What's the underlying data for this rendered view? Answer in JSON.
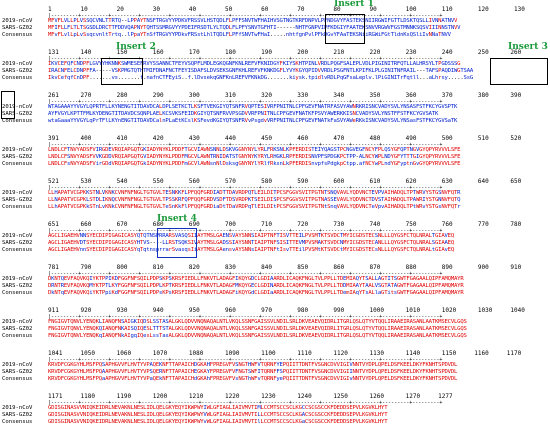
{
  "labels": {
    "a": "2019-nCoV",
    "b": "SARS-GZ02",
    "c": "Consensus"
  },
  "inserts": [
    "Insert 1",
    "Insert 2",
    "Insert 3",
    "Insert 4"
  ],
  "blocks": [
    {
      "scale": "1        10        20        30        40        50        60        70        80        90        100       110       120       130",
      "a": "MFVFLVLLPLVSSQCVNLTTRTQ--LPPAYTNSFTRGVYYPDKVFRSSVLHSTQDLFLPFFSNVTWFHAIHVSGTNGTKRFDNPVLPFNDGVYFASTEKSNIIRGWIFGTTLDSKTQSLLIVNNATNVV",
      "b": "MFIFLLFLTLTSGSDLDRCTTFDDVQAPNYTQHTSSMRGVYYPDEIFRSDTLYLTQDLFLPFYSNVTGFHTI------NHTFGNPVIPFKDGIYFAATEKSNVVRGWVFGSTMNNKSQSVIIINNSTNVV",
      "c": "MFvFLvlLpLvSsqcvnltTrtq..lPpaYTnSfTRGVYYPDkvFRSstLhlTQDLFLPFfSNVTwFHaI.....nhtfgnPvlPFkDGvYFAaTEKSNiiRGWiFGtTldnKsQSliIvNNaTNVV"
    },
    {
      "scale": "131      140       150       160       170       180       190       200       210       220       230       240       250      260",
      "a": "IKVCEFQFCNDPFLGVYYHKNNKSWMESEFRVYSSANNCTFEYVSQPFLMDLEGKQGNFKNLREFVFKNIDGYFKIYSKHTPINLVRDLPQGFSALEPLVDLPIGINITRFQTLLALHRSYLTPGDSSSG",
      "b": "IRACNFELCDNPFFA-----VSKPMGTQTHTMIFDNAFNCTFEYISDAFSLDVSEKSGNFKHLREFVFKNKDGFLYVYKGYQPIDVVRDLPSGFNTLKPIFKLPLGINITNFRAIL---TAFSPAQDIWGTSAA",
      "c": "IkvCefqfCnDPF.......vs.......f.nafnCTFEyiS..f.lDvsekqGNFKnLREFVFKNkDG.......kiysk.tpidlvRDLPqGFsaLeplv.lPiGINITrFqtll...aLhrsy.....SsG"
    },
    {
      "scale": "261      270       280       290       300       310       320       330       340       350       360       370       380      390",
      "a": "WTAGAAAYYVGYLQPRTFLLKYNENGTITDAVDCALDPLSETKCTLKSFTVEKGIYQTSNFRVQPTESIVRFPNITNLCPFGEVFNATRFASVYAWNRKRISNCVADYSVLYNSASFSTFKCYGVSPTK",
      "b": "AYFVGYLKPTTFMLKYDENGTITDAVDCSQNPLAELKCSVKSFEIDKGIYQTSNFRVVPSGDVVRFPNITNLCPFGEVFNATKFPSVYAWERKKISNCVADYSVLYNSTFFSTFKCYGVSATK",
      "c": "wtaGaaaYYVGYLqPrTFlLKYnENGTITDAVDCalnPLaEtKCslKSFevdKGIYQTSNFRVvPsgdvVRFPNITNLCPFGEVFNATkFaSVYAWeRKkISNCVADYSVLYNSasFSTFKCYGVSaTK"
    },
    {
      "scale": "391      400       410       420       430       440       450       460       470       480       490       500       510      520",
      "a": "LNDLCFTNVYADSFVIRGDEVRQIAPGQTGKIADYNYKLPDDFTGCVIAWNSNNLDSKVGGNYNYLYRLFRKSNLKPFERDISTEIYQAGSTPCNGVEGFNCYFPLQSYGFQPTNGVGYQPYRVVVLSFE",
      "b": "LNDLCFSNVYADSFVVKGDDVRQIAPGQTGVIADYNYKLPDDFMGCVLAWNTRNIDATSTGNYNYKYRYLRHGKLRPFERDISNVPFSPDGKPCTPP-ALNCYWPLNDYGFYTTTGIGYQPYRVVVLSFE",
      "c": "LNDLCFsNVYADSFVirGDdVRQIAPGQTGkIADYNYKLPDDFmGCVlAWNsnNlDsksgGNYNYlYRlfRksnLkPFERDISnvpfsPdgkpCtpp.afNCYwPLndYGFyptnGvGYQPYRVVVLSFE"
    },
    {
      "scale": "521      530       540       550       560       570       580       590       600       610       620       630       640      650",
      "a": "LLHAPATVCGPKKSTNLVKNKCVNFNFNGLTGTGVLTESNKKFLPFQQFGRDIADTTDAVRDPQTLEILDITPCSFGGVSVITPGTNTSNQVAVLYQDVNCTEVPVAIHADQLTPTWRVYSTGSNVFQTR",
      "b": "LLNAPATVCGPKLSTDLIKNQCVNFNFNGLTGTGVLTPSSKRFQPFQQFGRDVSDFTDSVRDPKTSEILDISPCSFGGVSVITPGTNASSEVAVLYQDVNCTDVSTAIHADQLTPAWRIYSTGNNVFQTQ",
      "c": "LLhAPATVCGPKkSTnLvKNkCVNFNFNGLTGTGVLTeSnKkFlPFQQFGRDiaDtTDaVRDPqTlEILDItPCSFGGVSVITPGTNtSnqVAVLYQDVNCTeVpvAIHADQLTPtWRvYSTGsNVFQTr"
    },
    {
      "scale": "651      660       670       680       690       700       710       720       730       740       750       760       770      780",
      "a": "AGCLIGAEHVNNSYECDIPIGAGICASYQTQTNSPRRARSVASQSIIAYTMSLGAENSVAYSNNSIAIPTNFTISVTTEILPVSMTKTSVDCTMYICGDSTECSNLLLQYGSFCTQLNRALTGIAVEQ",
      "b": "AGCLIGAEHVDTSYECDIPIGAGICASYHTVS----LLRSTSQKSIVAYTMSLGADSSIAYSNNTIAIPTNFSISITTEVMPVSMAKTSVDCNMYICGDSTECANLLLQYGSFCTQLNRALSGIAAEQ",
      "c": "AGCLIGAEHVnnSYECDIPIGAGICASYqTqtnsprrarSvasqsIiAYTMSLGAensvAYSNNsIAIPTNFtIsvTTEilPVSMtKTSVDCtMYICGDSTECsNLLLQYGSFCTQLNRALtGIAvEQ"
    },
    {
      "scale": "781      790       800       810       820       830       840       850       860       870       880       890       900      910",
      "a": "DKNTQEVFAQVKQIYKTPPIKDFGGFNFSQILPDPSKPSKRSFIEDLLFNKVTLADAGFIKQYGDCLGDIAARDLICAQKFNGLTVLPPLLTDEMIAQYTSALLAGTITSGWTFGAGAALQIPFAMQMAYR",
      "b": "DRNTREVFAQVKQMYKTPTLKYFGGFNFSQILPDPLKPTKRSFIEDLLFNKVTLADAGFMKQYGECLGDINARDLICAQKFNGLTVLPPLLTDDMIAAYTAALVSGTATAGWTFGAGAALQIPFAMQMAYR",
      "c": "DkNTqEVFAQVKQiYKTPpiKdFGGFNFSQILPDPsKPsKRSFIEDLLFNKVTLADAGFiKQYGdCLGDIaARDLICAQKFNGLTVLPPLLTDemIAqYTsALlaGTitsGWTFGAGAALQIPFAMQMAYR"
    },
    {
      "scale": "911      920       930       940       950       960       970       980       990       1000      1010      1020      1030     1040",
      "a": "FNGIGVTQNVLYENQKLIANQFNSAIGKIQDSLSSTASALGKLQDVVNQNAQALNTLVKQLSSNFGAISSVLNDILSRLDKVEAEVQIDRLITGRLQSLQTYVTQQLIRAAEIRASANLAATKMSECVLGQS",
      "b": "FNGIGVTQNVLYENQKQIANQFNKAISQIQESLTTTSTALGKLQDVVNQNAQALNTLVKQLSSNFGAISSVLNDILSRLDKVEAEVQIDRLITGRLQSLQTYVTQQLIRAAEIRASANLAATKMSECVLGQS",
      "c": "FNGIGVTQNVLYENQKqIANQFNkAIgqIQesLssTasALGKLQDVVNQNAQALNTLVKQLSSNFGAISSVLNDILSRLDKVEAEVQIDRLITGRLQSLQTYVTQQLIRAAEIRASANLAATKMSECVLGQS"
    },
    {
      "scale": "1041     1050      1060      1070      1080      1090      1100      1110      1120      1130      1140      1150     1160     1170",
      "a": "KRVDFCGKGYHLMSFPQSAPHGVVFLHVTYVPAQEKNFTTAPAICHDGKAHFPREGVFVSNGTHWFVTQRNFYEPQIITTDNTFVSGNCDVVIGIVNNTVYDPLQPELDSFKEELDKYFKNHTSPDVDL",
      "b": "KRVDFCGKGYHLMSFPQAAPHGVVFLHVTYVPSQERNFTTAPAICHEGKAYFPREGVFVFNGTSWFITQRNFFSPQIITTDNTFVSGNCDVVIGIINNTVYDPLQPELDSFKEELDKYFKNHTSPDVDL",
      "c": "KRVDFCGKGYHLMSFPQaAPHGVVFLHVTYVPaQEkNFTTAPAICHdGKAhFPREGVFVsNGThWFvTQRNFyePQIITTDNTFVSGNCDVVIGIvNNTVYDPLQPELDSFKEELDKYFKNHTSPDVDL"
    },
    {
      "scale": "1171     1180      1190      1200      1210      1220      1230      1240      1250      1260      1270     1277",
      "a": "GDISGINASVVNIQKEIDRLNEVAKNLNESLIDLQELGKYEQYIKWPWYIWLGFIAGLIAIVMVTIMLCCMTSCCSCLKGCCSCGSCCKFDEDDSEPVLKGVKLHYT",
      "b": "GDISGINASVVNIQKEIDRLNEVAKNLNESLIDLQELGKYEQYIKWPWYVWLGFIAGLIAIVMVTILLCCMTSCCSCLKGACSCGSCCKFDEDDSEPVLKGVKLHYT",
      "c": "GDISGINASVVNIQKEIDRLNEVAKNLNESLIDLQELGKYEQYIKWPWYvWLGFIAGLIAIVMVTIlLCCMTSCCSCLKGaCSCGSCCKFDEDDSEPVLKGVKLHYT"
    }
  ],
  "colors": {
    "identical": "#e00000",
    "similar": "#0020d0",
    "insert_title": "#1a9a3a"
  }
}
